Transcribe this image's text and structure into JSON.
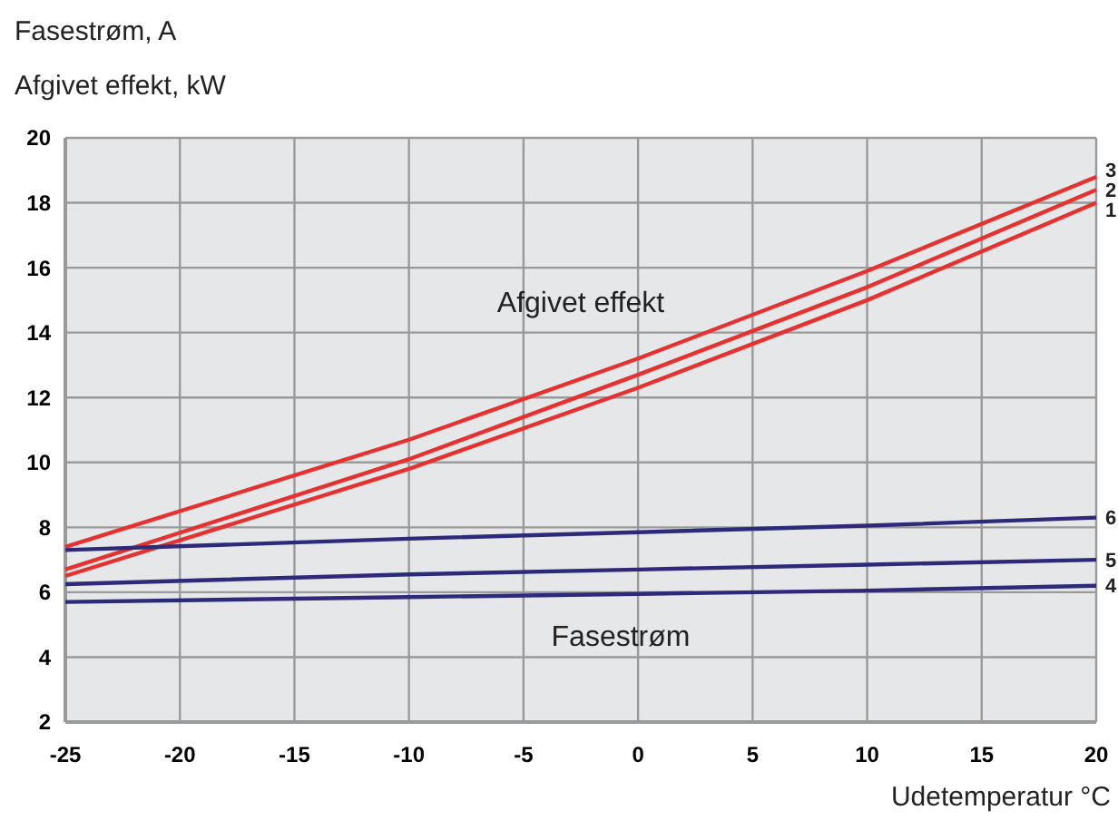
{
  "chart_data": {
    "type": "line",
    "title": "Fasestrøm, A",
    "ylabel": "Afgivet effekt, kW",
    "xlabel": "Udetemperatur °C",
    "x": [
      -25,
      -10,
      0,
      10,
      20
    ],
    "series": [
      {
        "name": "1",
        "color": "#e8312f",
        "values": [
          6.5,
          9.8,
          12.3,
          15.0,
          18.0
        ]
      },
      {
        "name": "2",
        "color": "#e8312f",
        "values": [
          6.7,
          10.1,
          12.7,
          15.4,
          18.4
        ]
      },
      {
        "name": "3",
        "color": "#e8312f",
        "values": [
          7.4,
          10.7,
          13.2,
          15.9,
          18.8
        ]
      },
      {
        "name": "4",
        "color": "#2e2a7a",
        "values": [
          5.7,
          5.85,
          5.95,
          6.05,
          6.2
        ]
      },
      {
        "name": "5",
        "color": "#2e2a7a",
        "values": [
          6.25,
          6.55,
          6.7,
          6.85,
          7.0
        ]
      },
      {
        "name": "6",
        "color": "#2e2a7a",
        "values": [
          7.3,
          7.65,
          7.85,
          8.05,
          8.3
        ]
      }
    ],
    "annotations": [
      "Afgivet effekt",
      "Fasestrøm"
    ],
    "xlim": [
      -25,
      20
    ],
    "xticks": [
      -25,
      -20,
      -15,
      -10,
      -5,
      0,
      5,
      10,
      15,
      20
    ],
    "ylim": [
      2,
      20
    ],
    "yticks": [
      2,
      4,
      6,
      8,
      10,
      12,
      14,
      16,
      18,
      20
    ],
    "grid": true,
    "marker": "none",
    "line_style": "solid"
  }
}
